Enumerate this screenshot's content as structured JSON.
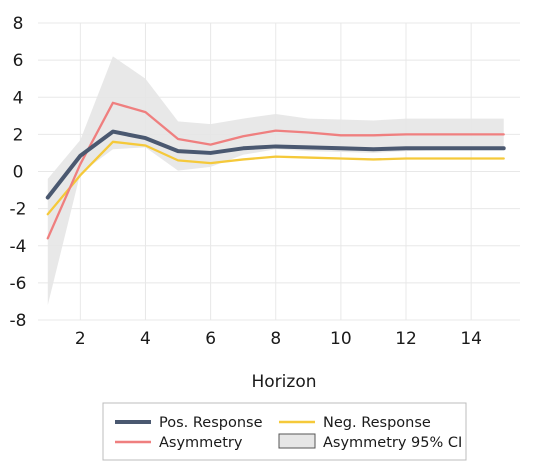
{
  "chart_data": {
    "type": "line",
    "xlabel": "Horizon",
    "ylabel": "",
    "title": "",
    "xlim": [
      0.7,
      15.5
    ],
    "ylim": [
      -8,
      8
    ],
    "xticks": [
      2,
      4,
      6,
      8,
      10,
      12,
      14
    ],
    "yticks": [
      8,
      6,
      4,
      2,
      0,
      -2,
      -4,
      -6,
      -8
    ],
    "grid": "horizontal and vertical",
    "legend_position": "bottom",
    "x": [
      1,
      2,
      3,
      4,
      5,
      6,
      7,
      8,
      9,
      10,
      11,
      12,
      13,
      14,
      15
    ],
    "series": [
      {
        "name": "Pos. Response",
        "color": "#4a5870",
        "values": [
          -1.4,
          0.85,
          2.15,
          1.8,
          1.1,
          1.0,
          1.25,
          1.35,
          1.3,
          1.25,
          1.2,
          1.25,
          1.25,
          1.25,
          1.25
        ]
      },
      {
        "name": "Neg. Response",
        "color": "#f5c93a",
        "values": [
          -2.3,
          -0.2,
          1.6,
          1.4,
          0.6,
          0.45,
          0.65,
          0.8,
          0.75,
          0.7,
          0.65,
          0.7,
          0.7,
          0.7,
          0.7
        ]
      },
      {
        "name": "Asymmetry",
        "color": "#ef7f7f",
        "values": [
          -3.6,
          0.4,
          3.7,
          3.2,
          1.75,
          1.45,
          1.9,
          2.2,
          2.1,
          1.95,
          1.95,
          2.0,
          2.0,
          2.0,
          2.0
        ]
      }
    ],
    "band": {
      "name": "Asymmetry 95% CI",
      "color": "#e6e6e6",
      "lower": [
        -7.2,
        -0.1,
        1.2,
        1.3,
        0.05,
        0.25,
        0.9,
        1.2,
        1.1,
        1.05,
        1.0,
        1.1,
        1.15,
        1.15,
        1.15
      ],
      "upper": [
        -0.4,
        1.7,
        6.2,
        5.0,
        2.7,
        2.55,
        2.85,
        3.1,
        2.85,
        2.8,
        2.75,
        2.85,
        2.85,
        2.85,
        2.85
      ]
    },
    "legend": [
      "Pos. Response",
      "Neg. Response",
      "Asymmetry",
      "Asymmetry 95% CI"
    ]
  }
}
